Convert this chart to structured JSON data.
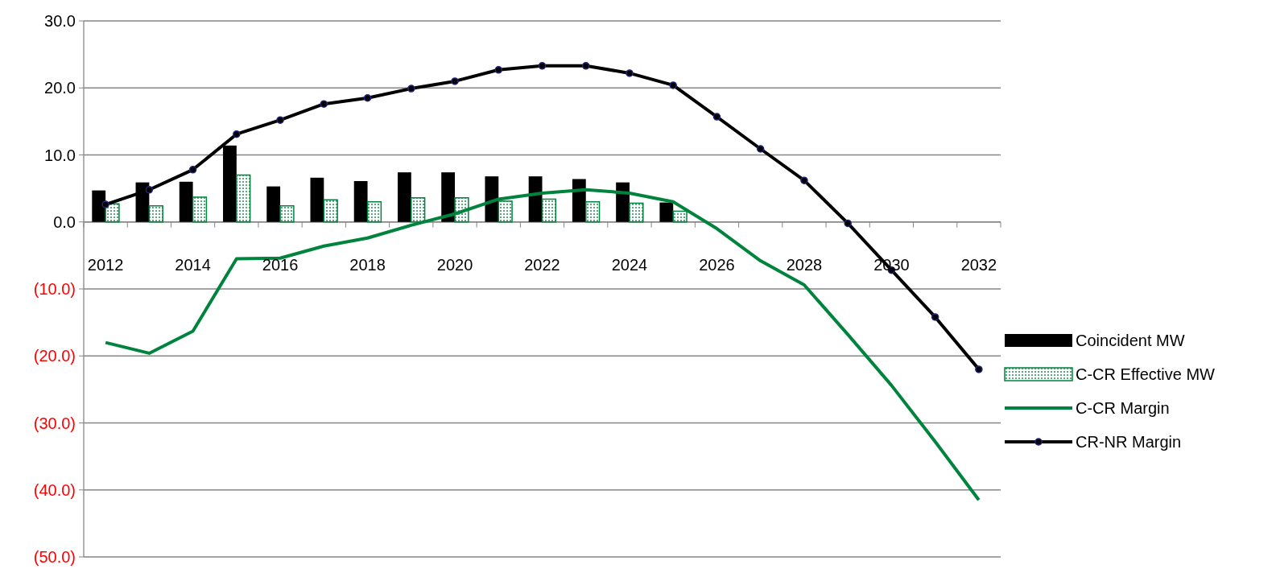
{
  "chart_data": {
    "type": "bar",
    "categories": [
      "2012",
      null,
      "2014",
      null,
      "2016",
      null,
      "2018",
      null,
      "2020",
      null,
      "2022",
      null,
      "2024",
      null,
      "2026",
      null,
      "2028",
      null,
      "2030",
      null,
      "2032"
    ],
    "series": [
      {
        "name": "Coincident MW",
        "color": "#000000",
        "values": [
          4.7,
          5.9,
          6.0,
          11.4,
          5.3,
          6.6,
          6.1,
          7.4,
          7.4,
          6.8,
          6.8,
          6.4,
          5.9,
          2.9,
          null,
          null,
          null,
          null,
          null,
          null,
          null
        ]
      },
      {
        "name": "C-CR Effective MW",
        "color": "#00843d",
        "values": [
          2.7,
          2.4,
          3.7,
          7.0,
          2.4,
          3.3,
          3.0,
          3.6,
          3.6,
          3.1,
          3.4,
          3.0,
          2.8,
          1.6,
          null,
          null,
          null,
          null,
          null,
          null,
          null
        ]
      },
      {
        "name": "C-CR Margin",
        "type": "line",
        "color": "#00843d",
        "marker": "none",
        "values": [
          -18.0,
          -19.6,
          -16.3,
          -5.5,
          -5.4,
          -3.6,
          -2.4,
          -0.5,
          1.2,
          3.4,
          4.3,
          4.8,
          4.3,
          3.0,
          -1.0,
          -5.8,
          -9.4,
          -16.8,
          -24.4,
          -32.8,
          -41.5
        ]
      },
      {
        "name": "CR-NR Margin",
        "type": "line",
        "color": "#000000",
        "marker": "circle",
        "values": [
          2.6,
          4.8,
          7.8,
          13.1,
          15.2,
          17.6,
          18.5,
          19.9,
          21.0,
          22.7,
          23.3,
          23.3,
          22.2,
          20.4,
          15.7,
          10.9,
          6.2,
          -0.2,
          -7.2,
          -14.2,
          -22.0
        ]
      }
    ],
    "ylim": [
      -50,
      30
    ],
    "yticks": [
      {
        "value": -50,
        "label": "(50.0)"
      },
      {
        "value": -40,
        "label": "(40.0)"
      },
      {
        "value": -30,
        "label": "(30.0)"
      },
      {
        "value": -20,
        "label": "(20.0)"
      },
      {
        "value": -10,
        "label": "(10.0)"
      },
      {
        "value": 0,
        "label": "0.0"
      },
      {
        "value": 10,
        "label": "10.0"
      },
      {
        "value": 20,
        "label": "20.0"
      },
      {
        "value": 30,
        "label": "30.0"
      }
    ],
    "grid": "y",
    "legend": "right"
  }
}
